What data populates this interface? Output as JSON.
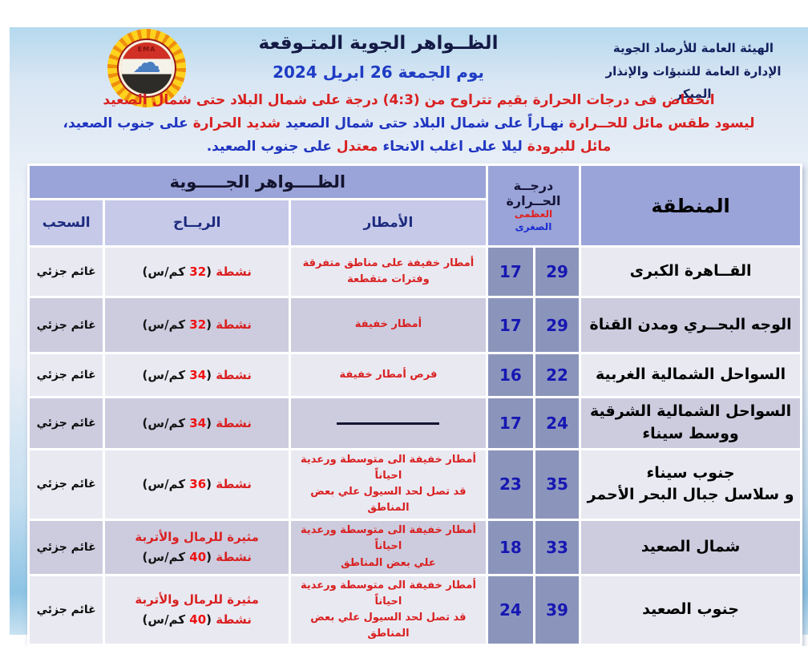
{
  "meta": {
    "org_line1": "الهيئة العامة للأرصاد الجوية",
    "org_line2": "الإدارة العامة للتنبؤات والإنذار المبكر",
    "title": "الظــواهر الجوية المتـوقعة",
    "date_line": "يوم الجمعة 26 ابريل 2024",
    "logo_text": "EMA",
    "cloud_icon_glyph": "☁"
  },
  "colors": {
    "announcement_red": "#d92121",
    "announcement_blue": "#1f35c0",
    "header_blue": "#9aa4d8",
    "subheader_blue": "#c6c9e8",
    "temp_cell_blue": "#8b95bc",
    "row_light": "#e9e9f2",
    "row_dark": "#cdccdf",
    "number_blue": "#1717b2"
  },
  "announcement": {
    "lines": [
      [
        {
          "t": "انخفاض فى درجات الحرارة بقيم تتراوح من (4:3) درجة على شمال البلاد حتى شمال الصعيد",
          "c": "red"
        }
      ],
      [
        {
          "t": "ليسود طقس مائل للحــرارة ",
          "c": "red"
        },
        {
          "t": "نهـاراً على شمال البلاد حتى شمال الصعيد ",
          "c": "blue"
        },
        {
          "t": "شديد الحرارة ",
          "c": "red"
        },
        {
          "t": "على جنوب الصعيد،",
          "c": "blue"
        }
      ],
      [
        {
          "t": "مائل للبرودة ",
          "c": "red"
        },
        {
          "t": "ليلا على اغلب الانحاء ",
          "c": "blue"
        },
        {
          "t": "معتدل ",
          "c": "red"
        },
        {
          "t": "على جنوب الصعيد.",
          "c": "blue"
        }
      ]
    ]
  },
  "table": {
    "phenomena_header": "الظــــواهر الجـــــوية",
    "region_header": "المنطقة",
    "temp_header": {
      "l1": "درجــة",
      "l2": "الحــرارة",
      "max": "العظمى",
      "min": "الصغرى"
    },
    "sub_headers": {
      "rain": "الأمطار",
      "wind": "الريــاح",
      "clouds": "السحب"
    },
    "rows": [
      {
        "region": [
          "القــاهرة الكبرى"
        ],
        "max": "29",
        "min": "17",
        "rain": [
          "أمطار خفيفة على مناطق متفرقة",
          "وفترات متقطعة"
        ],
        "wind": [
          [
            {
              "t": "نشطة ",
              "c": "red"
            },
            {
              "t": "(",
              "c": "black"
            },
            {
              "t": "32",
              "c": "num"
            },
            {
              "t": " كم/س)",
              "c": "black"
            }
          ]
        ],
        "clouds": "غائم جزئي"
      },
      {
        "region": [
          "الوجه البحــري  ومدن القناة"
        ],
        "max": "29",
        "min": "17",
        "rain": [
          "أمطار خفيفة"
        ],
        "wind": [
          [
            {
              "t": "نشطة ",
              "c": "red"
            },
            {
              "t": "(",
              "c": "black"
            },
            {
              "t": "32",
              "c": "num"
            },
            {
              "t": " كم/س)",
              "c": "black"
            }
          ]
        ],
        "clouds": "غائم جزئي"
      },
      {
        "region": [
          "السواحل الشمالية الغربية"
        ],
        "max": "22",
        "min": "16",
        "rain": [
          "فرص أمطار خفيفة"
        ],
        "wind": [
          [
            {
              "t": "نشطة ",
              "c": "red"
            },
            {
              "t": "(",
              "c": "black"
            },
            {
              "t": "34",
              "c": "num"
            },
            {
              "t": " كم/س)",
              "c": "black"
            }
          ]
        ],
        "clouds": "غائم جزئي"
      },
      {
        "region": [
          "السواحل الشمالية الشرقية",
          "ووسط سيناء"
        ],
        "max": "24",
        "min": "17",
        "rain": [],
        "rain_dash": true,
        "wind": [
          [
            {
              "t": "نشطة ",
              "c": "red"
            },
            {
              "t": "(",
              "c": "black"
            },
            {
              "t": "34",
              "c": "num"
            },
            {
              "t": " كم/س)",
              "c": "black"
            }
          ]
        ],
        "clouds": "غائم جزئي"
      },
      {
        "region": [
          "جنوب سيناء",
          "و سلاسل جبال البحر الأحمر"
        ],
        "max": "35",
        "min": "23",
        "rain": [
          "أمطار خفيفة الى متوسطة ورعدية احياناً",
          "قد تصل لحد السيول علي بعض المناطق"
        ],
        "wind": [
          [
            {
              "t": "نشطة ",
              "c": "red"
            },
            {
              "t": "(",
              "c": "black"
            },
            {
              "t": "36",
              "c": "num"
            },
            {
              "t": " كم/س)",
              "c": "black"
            }
          ]
        ],
        "clouds": "غائم جزئي"
      },
      {
        "region": [
          "شمال الصعيد"
        ],
        "max": "33",
        "min": "18",
        "rain": [
          "أمطار خفيفة الى متوسطة ورعدية احياناً",
          "علي بعض المناطق"
        ],
        "wind": [
          [
            {
              "t": "مثيرة للرمال والأتربة",
              "c": "red"
            }
          ],
          [
            {
              "t": "نشطة ",
              "c": "red"
            },
            {
              "t": "(",
              "c": "black"
            },
            {
              "t": "40",
              "c": "num"
            },
            {
              "t": " كم/س)",
              "c": "black"
            }
          ]
        ],
        "clouds": "غائم جزئي"
      },
      {
        "region": [
          "جنوب الصعيد"
        ],
        "max": "39",
        "min": "24",
        "rain": [
          "أمطار خفيفة الى متوسطة ورعدية احياناً",
          "قد تصل لحد السيول علي بعض المناطق"
        ],
        "wind": [
          [
            {
              "t": "مثيرة للرمال والأتربة",
              "c": "red"
            }
          ],
          [
            {
              "t": "نشطة ",
              "c": "red"
            },
            {
              "t": "(",
              "c": "black"
            },
            {
              "t": "40",
              "c": "num"
            },
            {
              "t": " كم/س)",
              "c": "black"
            }
          ]
        ],
        "clouds": "غائم جزئي"
      }
    ]
  }
}
